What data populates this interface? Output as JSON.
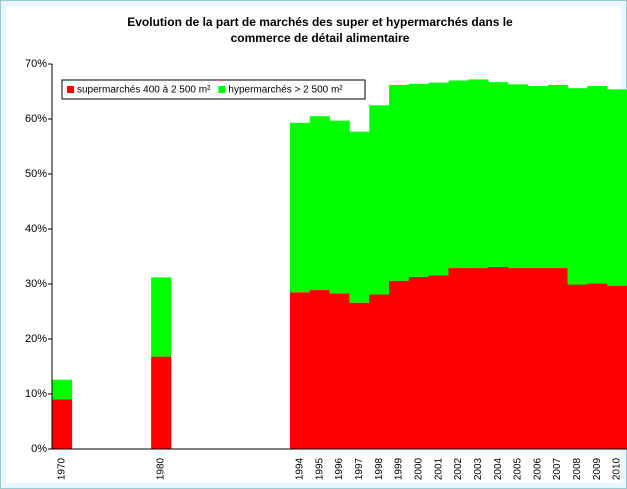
{
  "chart_data": {
    "type": "stacked_bar",
    "title": [
      "Evolution de la part de marchés des super et hypermarchés dans le",
      "commerce de détail alimentaire"
    ],
    "categories": [
      "1970",
      null,
      null,
      null,
      null,
      "1980",
      null,
      null,
      null,
      null,
      null,
      null,
      "1994",
      "1995",
      "1996",
      "1997",
      "1998",
      "1999",
      "2000",
      "2001",
      "2002",
      "2003",
      "2004",
      "2005",
      "2006",
      "2007",
      "2008",
      "2009",
      "2010"
    ],
    "series": [
      {
        "name": "supermarchés 400 à 2 500 m²",
        "color": "#ff0000",
        "values": [
          9,
          null,
          null,
          null,
          null,
          16.8,
          null,
          null,
          null,
          null,
          null,
          null,
          28.5,
          28.9,
          28.3,
          26.6,
          28.1,
          30.6,
          31.3,
          31.6,
          32.9,
          32.9,
          33.1,
          32.9,
          32.9,
          32.9,
          29.9,
          30.1,
          29.7
        ]
      },
      {
        "name": "hypermarchés > 2 500 m²",
        "color": "#00ff00",
        "values": [
          3.6,
          null,
          null,
          null,
          null,
          14.4,
          null,
          null,
          null,
          null,
          null,
          null,
          30.8,
          31.6,
          31.4,
          31.1,
          34.4,
          35.6,
          35.1,
          35.0,
          34.1,
          34.3,
          33.6,
          33.4,
          33.1,
          33.3,
          35.7,
          35.9,
          35.7
        ]
      }
    ],
    "ylim": [
      0,
      70
    ],
    "yticks": [
      {
        "value": 0,
        "label": "0%"
      },
      {
        "value": 10,
        "label": "10%"
      },
      {
        "value": 20,
        "label": "20%"
      },
      {
        "value": 30,
        "label": "30%"
      },
      {
        "value": 40,
        "label": "40%"
      },
      {
        "value": 50,
        "label": "50%"
      },
      {
        "value": 60,
        "label": "60%"
      },
      {
        "value": 70,
        "label": "70%"
      }
    ],
    "legend": "top-left"
  }
}
